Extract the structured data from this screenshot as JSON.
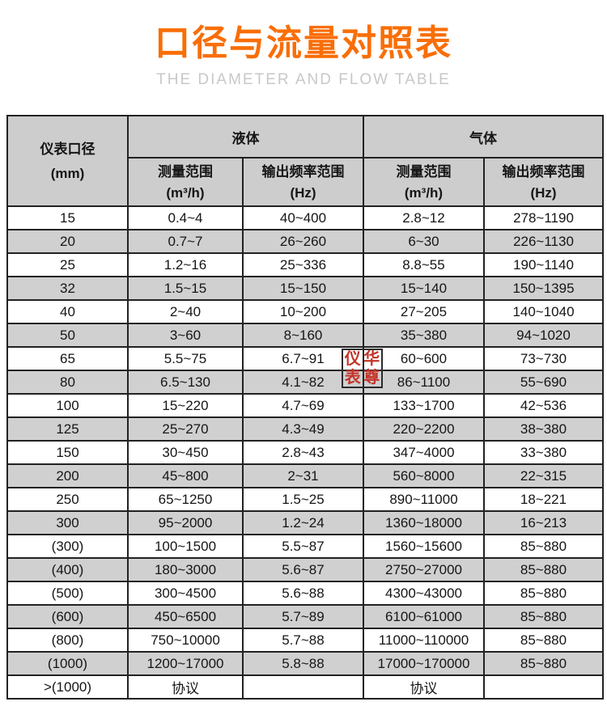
{
  "header": {
    "title": "口径与流量对照表",
    "subtitle": "THE DIAMETER AND FLOW TABLE"
  },
  "table": {
    "header": {
      "diameter_label": "仪表口径",
      "diameter_unit": "(mm)",
      "liquid_label": "液体",
      "gas_label": "气体",
      "measure_label": "测量范围",
      "measure_unit": "(m³/h)",
      "freq_label": "输出频率范围",
      "freq_unit": "(Hz)"
    },
    "rows": [
      [
        "15",
        "0.4~4",
        "40~400",
        "2.8~12",
        "278~1190"
      ],
      [
        "20",
        "0.7~7",
        "26~260",
        "6~30",
        "226~1130"
      ],
      [
        "25",
        "1.2~16",
        "25~336",
        "8.8~55",
        "190~1140"
      ],
      [
        "32",
        "1.5~15",
        "15~150",
        "15~140",
        "150~1395"
      ],
      [
        "40",
        "2~40",
        "10~200",
        "27~205",
        "140~1040"
      ],
      [
        "50",
        "3~60",
        "8~160",
        "35~380",
        "94~1020"
      ],
      [
        "65",
        "5.5~75",
        "6.7~91",
        "60~600",
        "73~730"
      ],
      [
        "80",
        "6.5~130",
        "4.1~82",
        "86~1100",
        "55~690"
      ],
      [
        "100",
        "15~220",
        "4.7~69",
        "133~1700",
        "42~536"
      ],
      [
        "125",
        "25~270",
        "4.3~49",
        "220~2200",
        "38~380"
      ],
      [
        "150",
        "30~450",
        "2.8~43",
        "347~4000",
        "33~380"
      ],
      [
        "200",
        "45~800",
        "2~31",
        "560~8000",
        "22~315"
      ],
      [
        "250",
        "65~1250",
        "1.5~25",
        "890~11000",
        "18~221"
      ],
      [
        "300",
        "95~2000",
        "1.2~24",
        "1360~18000",
        "16~213"
      ],
      [
        "(300)",
        "100~1500",
        "5.5~87",
        "1560~15600",
        "85~880"
      ],
      [
        "(400)",
        "180~3000",
        "5.6~87",
        "2750~27000",
        "85~880"
      ],
      [
        "(500)",
        "300~4500",
        "5.6~88",
        "4300~43000",
        "85~880"
      ],
      [
        "(600)",
        "450~6500",
        "5.7~89",
        "6100~61000",
        "85~880"
      ],
      [
        "(800)",
        "750~10000",
        "5.7~88",
        "11000~110000",
        "85~880"
      ],
      [
        "(1000)",
        "1200~17000",
        "5.8~88",
        "17000~170000",
        "85~880"
      ],
      [
        ">(1000)",
        "协议",
        "",
        "协议",
        ""
      ]
    ]
  },
  "watermark": {
    "chars": [
      "仪",
      "华",
      "表",
      "尊"
    ]
  },
  "colors": {
    "accent_orange": "#f96e07",
    "subtitle_gray": "#c8c8c8",
    "header_gray": "#cdcdcd",
    "alt_row_gray": "#d0d0d0",
    "border_dark": "#222222",
    "watermark_red": "#c43429"
  }
}
